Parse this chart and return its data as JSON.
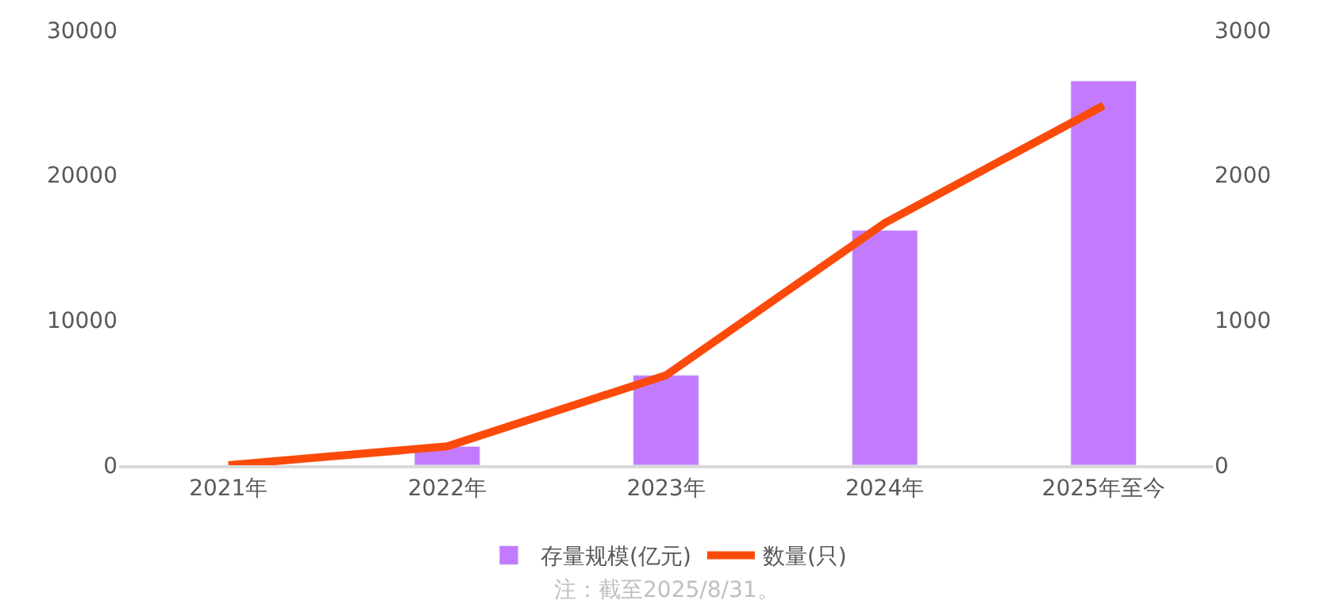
{
  "chart_data": {
    "type": "bar",
    "categories": [
      "2021年",
      "2022年",
      "2023年",
      "2024年",
      "2025年至今"
    ],
    "series": [
      {
        "name": "存量规模(亿元)",
        "color": "#c27bff",
        "values": [
          null,
          1300,
          6200,
          16200,
          26500
        ]
      },
      {
        "name": "数量(只)",
        "type": "line",
        "axis": "y2",
        "color": "#fc4a0a",
        "values": [
          0,
          130,
          620,
          1670,
          2480
        ],
        "line_style": "solid"
      }
    ],
    "ylim": [
      0,
      30000
    ],
    "yticks": [
      0,
      10000,
      20000,
      30000
    ],
    "y2lim": [
      0,
      3000
    ],
    "y2ticks": [
      0,
      1000,
      2000,
      3000
    ],
    "legend": "bottom",
    "marker": "none",
    "annotations": [
      "注：截至2025/8/31。"
    ]
  }
}
